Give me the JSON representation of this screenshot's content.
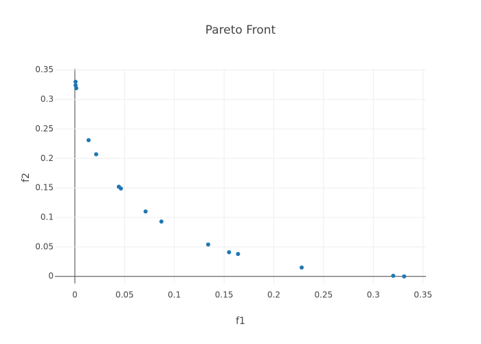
{
  "chart_data": {
    "type": "scatter",
    "title": "Pareto Front",
    "x_label": "f1",
    "y_label": "f2",
    "series": [
      {
        "name": "Pareto Front",
        "color": "#1f77b4",
        "x": [
          0.0007,
          0.0007,
          0.0014,
          0.0138,
          0.0214,
          0.0442,
          0.0463,
          0.0711,
          0.087,
          0.134,
          0.155,
          0.164,
          0.228,
          0.32,
          0.331
        ],
        "values": [
          0.33,
          0.324,
          0.319,
          0.231,
          0.207,
          0.152,
          0.149,
          0.11,
          0.093,
          0.054,
          0.041,
          0.038,
          0.015,
          0.001,
          0.0
        ]
      }
    ],
    "xlim": [
      -0.02,
      0.353
    ],
    "ylim": [
      -0.012,
      0.352
    ],
    "xticks": [
      0,
      0.05,
      0.1,
      0.15,
      0.2,
      0.25,
      0.3,
      0.35
    ],
    "yticks": [
      0,
      0.05,
      0.1,
      0.15,
      0.2,
      0.25,
      0.3,
      0.35
    ],
    "grid": true
  }
}
